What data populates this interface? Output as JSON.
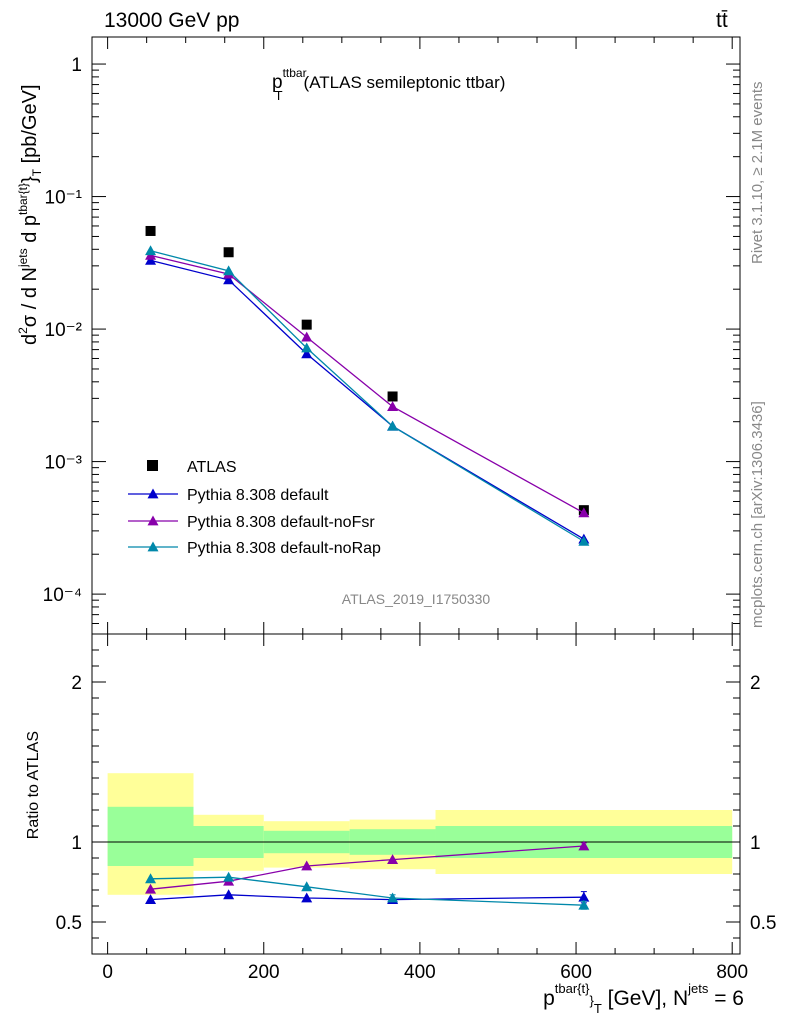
{
  "header": {
    "energy_label": "13000 GeV pp",
    "process_label": "tt̄"
  },
  "title": {
    "main": "p",
    "main_sup": "ttbar",
    "main_sub": "T",
    "suffix": "(ATLAS semileptonic ttbar)"
  },
  "ylabel_top": "d²σ / d N^jets d p^tbar{t}_T [pb/GeV]",
  "ylabel_bottom": "Ratio to ATLAS",
  "xlabel": {
    "p": "p",
    "sup": "tbar{t}",
    "sub": "T",
    "rest": " [GeV], N",
    "njets_sup": "jets",
    "eq": " = 6"
  },
  "watermark": "ATLAS_2019_I1750330",
  "side_text": {
    "rivet": "Rivet 3.1.10, ≥ 2.1M events",
    "mcplots": "mcplots.cern.ch [arXiv:1306.3436]"
  },
  "colors": {
    "atlas": "#000000",
    "default": "#0000cc",
    "noFsr": "#8800aa",
    "noRap": "#0088aa",
    "band_inner": "#99ff99",
    "band_outer": "#ffff99"
  },
  "chart_data": {
    "type": "scatter",
    "x_range": [
      -20,
      810
    ],
    "upper": {
      "yscale": "log",
      "ylim": [
        5e-05,
        1.6
      ],
      "y_ticks": [
        {
          "v": 1,
          "label": "1"
        },
        {
          "v": 0.1,
          "label": "10⁻¹"
        },
        {
          "v": 0.01,
          "label": "10⁻²"
        },
        {
          "v": 0.001,
          "label": "10⁻³"
        },
        {
          "v": 0.0001,
          "label": "10⁻⁴"
        }
      ]
    },
    "lower": {
      "ylim": [
        0.3,
        2.3
      ],
      "y_ticks": [
        {
          "v": 0.5,
          "label": "0.5"
        },
        {
          "v": 1,
          "label": "1"
        },
        {
          "v": 2,
          "label": "2"
        }
      ]
    },
    "x_ticks": [
      {
        "v": 0,
        "label": "0"
      },
      {
        "v": 200,
        "label": "200"
      },
      {
        "v": 400,
        "label": "400"
      },
      {
        "v": 600,
        "label": "600"
      },
      {
        "v": 800,
        "label": "800"
      }
    ],
    "x": [
      55,
      155,
      255,
      365,
      610
    ],
    "series": [
      {
        "name": "ATLAS",
        "key": "atlas",
        "marker": "square",
        "values": [
          0.055,
          0.038,
          0.0108,
          0.0031,
          0.00043
        ]
      },
      {
        "name": "Pythia 8.308 default",
        "key": "default",
        "marker": "triangle",
        "values": [
          0.033,
          0.0235,
          0.0065,
          0.00185,
          0.00026
        ],
        "ratio": [
          0.64,
          0.67,
          0.65,
          0.64,
          0.655
        ],
        "ratio_err": [
          0.01,
          0.01,
          0.01,
          0.01,
          0.035
        ]
      },
      {
        "name": "Pythia 8.308 default-noFsr",
        "key": "noFsr",
        "marker": "triangle",
        "values": [
          0.036,
          0.026,
          0.0087,
          0.0026,
          0.00041
        ],
        "ratio": [
          0.705,
          0.755,
          0.85,
          0.89,
          0.975
        ],
        "ratio_err": [
          0.01,
          0.01,
          0.01,
          0.01,
          0.02
        ]
      },
      {
        "name": "Pythia 8.308 default-noRap",
        "key": "noRap",
        "marker": "triangle",
        "values": [
          0.039,
          0.0275,
          0.0072,
          0.00185,
          0.00025
        ],
        "ratio": [
          0.77,
          0.78,
          0.72,
          0.65,
          0.605
        ],
        "ratio_err": [
          0.01,
          0.01,
          0.01,
          0.02,
          0.025
        ]
      }
    ],
    "bands": [
      {
        "x0": 0,
        "x1": 110,
        "inner": [
          0.85,
          1.22
        ],
        "outer": [
          0.67,
          1.43
        ]
      },
      {
        "x0": 110,
        "x1": 200,
        "inner": [
          0.9,
          1.1
        ],
        "outer": [
          0.82,
          1.17
        ]
      },
      {
        "x0": 200,
        "x1": 310,
        "inner": [
          0.93,
          1.07
        ],
        "outer": [
          0.84,
          1.13
        ]
      },
      {
        "x0": 310,
        "x1": 420,
        "inner": [
          0.92,
          1.08
        ],
        "outer": [
          0.83,
          1.14
        ]
      },
      {
        "x0": 420,
        "x1": 800,
        "inner": [
          0.9,
          1.1
        ],
        "outer": [
          0.8,
          1.2
        ]
      }
    ]
  }
}
